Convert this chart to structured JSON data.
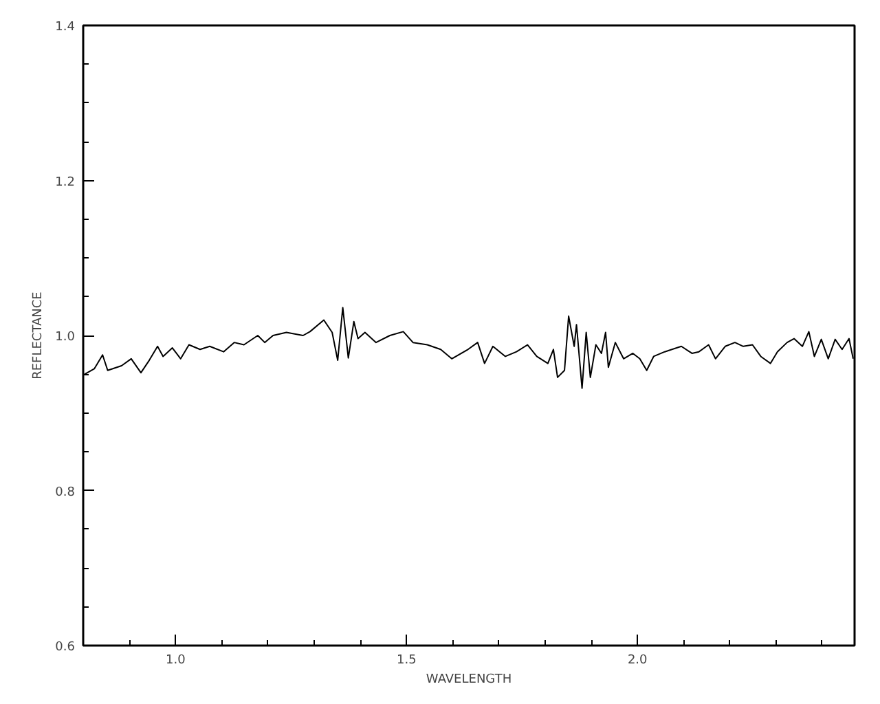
{
  "chart_data": {
    "type": "line",
    "xlabel": "WAVELENGTH",
    "ylabel": "REFLECTANCE",
    "xlim": [
      0.8,
      2.47
    ],
    "ylim": [
      0.6,
      1.4
    ],
    "xticks": [
      {
        "value": 0.9,
        "label": null
      },
      {
        "value": 1.0,
        "label": "1.0"
      },
      {
        "value": 1.1,
        "label": null
      },
      {
        "value": 1.2,
        "label": null
      },
      {
        "value": 1.3,
        "label": null
      },
      {
        "value": 1.4,
        "label": null
      },
      {
        "value": 1.5,
        "label": "1.5"
      },
      {
        "value": 1.6,
        "label": null
      },
      {
        "value": 1.7,
        "label": null
      },
      {
        "value": 1.8,
        "label": null
      },
      {
        "value": 1.9,
        "label": null
      },
      {
        "value": 2.0,
        "label": "2.0"
      },
      {
        "value": 2.1,
        "label": null
      },
      {
        "value": 2.2,
        "label": null
      },
      {
        "value": 2.3,
        "label": null
      },
      {
        "value": 2.4,
        "label": null
      }
    ],
    "yticks": [
      {
        "value": 0.6,
        "label": "0.6"
      },
      {
        "value": 0.65,
        "label": null
      },
      {
        "value": 0.7,
        "label": null
      },
      {
        "value": 0.75,
        "label": null
      },
      {
        "value": 0.8,
        "label": "0.8"
      },
      {
        "value": 0.85,
        "label": null
      },
      {
        "value": 0.9,
        "label": null
      },
      {
        "value": 0.95,
        "label": null
      },
      {
        "value": 1.0,
        "label": "1.0"
      },
      {
        "value": 1.05,
        "label": null
      },
      {
        "value": 1.1,
        "label": null
      },
      {
        "value": 1.15,
        "label": null
      },
      {
        "value": 1.2,
        "label": "1.2"
      },
      {
        "value": 1.25,
        "label": null
      },
      {
        "value": 1.3,
        "label": null
      },
      {
        "value": 1.35,
        "label": null
      },
      {
        "value": 1.4,
        "label": "1.4"
      }
    ],
    "grid": false,
    "marker": "none",
    "line_style": "solid",
    "series": [
      {
        "color": "#000000",
        "x": [
          0.803,
          0.824,
          0.842,
          0.853,
          0.883,
          0.904,
          0.925,
          0.943,
          0.961,
          0.973,
          0.993,
          1.011,
          1.029,
          1.053,
          1.074,
          1.104,
          1.127,
          1.148,
          1.178,
          1.193,
          1.211,
          1.24,
          1.276,
          1.291,
          1.321,
          1.339,
          1.351,
          1.362,
          1.374,
          1.386,
          1.395,
          1.41,
          1.434,
          1.464,
          1.493,
          1.514,
          1.545,
          1.574,
          1.598,
          1.633,
          1.654,
          1.669,
          1.687,
          1.714,
          1.738,
          1.762,
          1.782,
          1.806,
          1.818,
          1.827,
          1.842,
          1.851,
          1.863,
          1.868,
          1.88,
          1.889,
          1.898,
          1.91,
          1.922,
          1.931,
          1.937,
          1.952,
          1.97,
          1.99,
          2.005,
          2.02,
          2.035,
          2.059,
          2.095,
          2.118,
          2.133,
          2.154,
          2.169,
          2.19,
          2.211,
          2.229,
          2.249,
          2.267,
          2.288,
          2.303,
          2.324,
          2.339,
          2.357,
          2.371,
          2.383,
          2.398,
          2.413,
          2.428,
          2.443,
          2.458,
          2.467
        ],
        "values": [
          0.95,
          0.957,
          0.975,
          0.955,
          0.961,
          0.97,
          0.952,
          0.968,
          0.986,
          0.973,
          0.984,
          0.97,
          0.988,
          0.982,
          0.986,
          0.979,
          0.991,
          0.988,
          1.0,
          0.991,
          1.0,
          1.004,
          1.0,
          1.005,
          1.02,
          1.004,
          0.968,
          1.036,
          0.971,
          1.018,
          0.996,
          1.004,
          0.991,
          1.0,
          1.005,
          0.991,
          0.988,
          0.982,
          0.97,
          0.982,
          0.991,
          0.964,
          0.986,
          0.973,
          0.979,
          0.988,
          0.973,
          0.964,
          0.982,
          0.946,
          0.955,
          1.025,
          0.986,
          1.014,
          0.932,
          1.004,
          0.946,
          0.988,
          0.977,
          1.004,
          0.959,
          0.991,
          0.97,
          0.977,
          0.97,
          0.955,
          0.973,
          0.979,
          0.986,
          0.977,
          0.979,
          0.988,
          0.97,
          0.986,
          0.991,
          0.986,
          0.988,
          0.973,
          0.964,
          0.979,
          0.991,
          0.996,
          0.986,
          1.005,
          0.973,
          0.995,
          0.97,
          0.995,
          0.982,
          0.996,
          0.97
        ]
      }
    ]
  }
}
